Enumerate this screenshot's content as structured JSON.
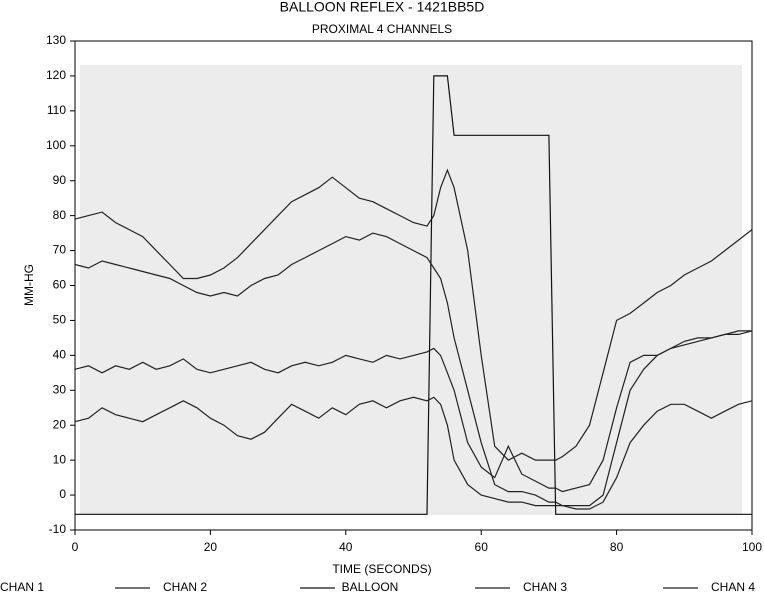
{
  "chart_data": {
    "type": "line",
    "title": "BALLOON REFLEX - 1421BB5D",
    "subtitle": "PROXIMAL 4 CHANNELS",
    "x_label": "TIME (SECONDS)",
    "y_label": "MM-HG",
    "x": [
      0,
      2,
      4,
      6,
      8,
      10,
      12,
      14,
      16,
      18,
      20,
      22,
      24,
      26,
      28,
      30,
      32,
      34,
      36,
      38,
      40,
      42,
      44,
      46,
      48,
      50,
      52,
      53,
      54,
      55,
      56,
      58,
      60,
      62,
      64,
      66,
      68,
      70,
      71,
      72,
      74,
      76,
      78,
      80,
      82,
      84,
      86,
      88,
      90,
      92,
      94,
      96,
      98,
      100
    ],
    "series": [
      {
        "name": "CHAN 1",
        "color": "#222222",
        "values": [
          79,
          80,
          81,
          78,
          76,
          74,
          70,
          66,
          62,
          62,
          63,
          65,
          68,
          72,
          76,
          80,
          84,
          86,
          88,
          91,
          88,
          85,
          84,
          82,
          80,
          78,
          77,
          80,
          88,
          93,
          88,
          70,
          40,
          14,
          10,
          12,
          10,
          10,
          10,
          11,
          14,
          20,
          35,
          50,
          52,
          55,
          58,
          60,
          63,
          65,
          67,
          70,
          73,
          76
        ]
      },
      {
        "name": "CHAN 2",
        "color": "#222222",
        "values": [
          66,
          65,
          67,
          66,
          65,
          64,
          63,
          62,
          60,
          58,
          57,
          58,
          57,
          60,
          62,
          63,
          66,
          68,
          70,
          72,
          74,
          73,
          75,
          74,
          72,
          70,
          68,
          65,
          62,
          55,
          45,
          30,
          15,
          3,
          1,
          1,
          0,
          -2,
          -2,
          -3,
          -3,
          -3,
          0,
          15,
          30,
          36,
          40,
          42,
          43,
          44,
          45,
          46,
          46,
          47
        ]
      },
      {
        "name": "BALLOON",
        "color": "#111111",
        "values": [
          -5.5,
          -5.5,
          -5.5,
          -5.5,
          -5.5,
          -5.5,
          -5.5,
          -5.5,
          -5.5,
          -5.5,
          -5.5,
          -5.5,
          -5.5,
          -5.5,
          -5.5,
          -5.5,
          -5.5,
          -5.5,
          -5.5,
          -5.5,
          -5.5,
          -5.5,
          -5.5,
          -5.5,
          -5.5,
          -5.5,
          -5.5,
          120,
          120,
          120,
          103,
          103,
          103,
          103,
          103,
          103,
          103,
          103,
          -5.5,
          -5.5,
          -5.5,
          -5.5,
          -5.5,
          -5.5,
          -5.5,
          -5.5,
          -5.5,
          -5.5,
          -5.5,
          -5.5,
          -5.5,
          -5.5,
          -5.5,
          -5.5
        ]
      },
      {
        "name": "CHAN 3",
        "color": "#222222",
        "values": [
          36,
          37,
          35,
          37,
          36,
          38,
          36,
          37,
          39,
          36,
          35,
          36,
          37,
          38,
          36,
          35,
          37,
          38,
          37,
          38,
          40,
          39,
          38,
          40,
          39,
          40,
          41,
          42,
          40,
          35,
          30,
          15,
          8,
          5,
          14,
          6,
          4,
          2,
          2,
          1,
          2,
          3,
          10,
          25,
          38,
          40,
          40,
          42,
          44,
          45,
          45,
          46,
          47,
          47
        ]
      },
      {
        "name": "CHAN 4",
        "color": "#222222",
        "values": [
          21,
          22,
          25,
          23,
          22,
          21,
          23,
          25,
          27,
          25,
          22,
          20,
          17,
          16,
          18,
          22,
          26,
          24,
          22,
          25,
          23,
          26,
          27,
          25,
          27,
          28,
          27,
          28,
          26,
          20,
          10,
          3,
          0,
          -1,
          -2,
          -2,
          -3,
          -3,
          -3,
          -3,
          -4,
          -4,
          -2,
          5,
          15,
          20,
          24,
          26,
          26,
          24,
          22,
          24,
          26,
          27
        ]
      }
    ],
    "xlim": [
      0,
      100
    ],
    "xticks": [
      0,
      20,
      40,
      60,
      80,
      100
    ],
    "ylim": [
      -10,
      130
    ],
    "yticks": [
      -10,
      0,
      10,
      20,
      30,
      40,
      50,
      60,
      70,
      80,
      90,
      100,
      110,
      120,
      130
    ],
    "legend": "bottom"
  }
}
